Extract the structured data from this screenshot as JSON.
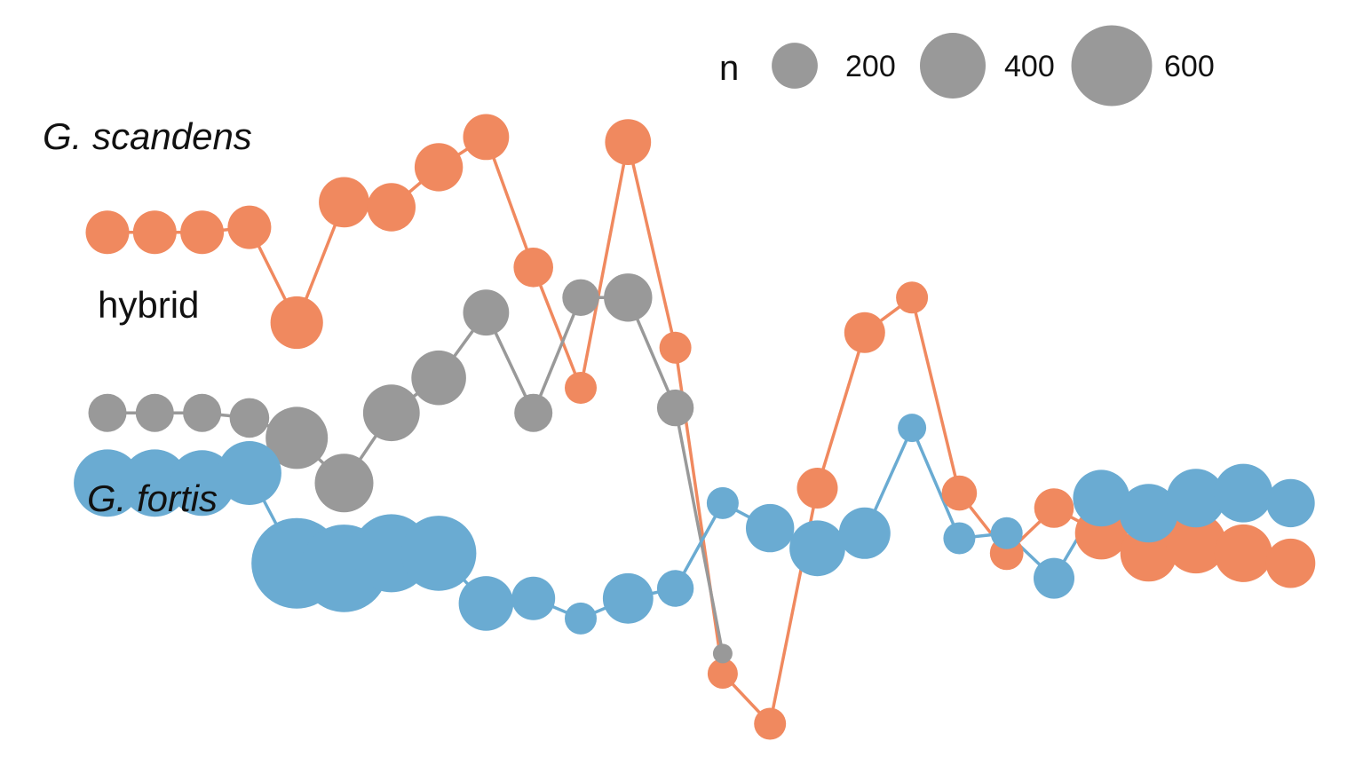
{
  "chart_data": {
    "type": "line",
    "title": "",
    "xlabel": "",
    "ylabel": "",
    "grid": false,
    "axes_visible": false,
    "x": [
      1,
      2,
      3,
      4,
      5,
      6,
      7,
      8,
      9,
      10,
      11,
      12,
      13,
      14,
      15,
      16,
      17,
      18,
      19,
      20,
      21,
      22,
      23,
      24,
      25,
      26
    ],
    "ylim": [
      0,
      1
    ],
    "size_legend": {
      "title": "n",
      "placement": "top-right",
      "color": "#999999",
      "entries": [
        {
          "label": "200",
          "n": 200
        },
        {
          "label": "400",
          "n": 400
        },
        {
          "label": "600",
          "n": 600
        }
      ]
    },
    "series": [
      {
        "name": "G. scandens",
        "color": "#F0895F",
        "label_italic": true,
        "points": [
          {
            "x": 1,
            "y": 0.88,
            "n": 180
          },
          {
            "x": 2,
            "y": 0.88,
            "n": 180
          },
          {
            "x": 3,
            "y": 0.88,
            "n": 180
          },
          {
            "x": 4,
            "y": 0.89,
            "n": 180
          },
          {
            "x": 5,
            "y": 0.7,
            "n": 260
          },
          {
            "x": 6,
            "y": 0.94,
            "n": 240
          },
          {
            "x": 7,
            "y": 0.93,
            "n": 220
          },
          {
            "x": 8,
            "y": 1.01,
            "n": 220
          },
          {
            "x": 9,
            "y": 1.07,
            "n": 200
          },
          {
            "x": 10,
            "y": 0.81,
            "n": 150
          },
          {
            "x": 11,
            "y": 0.57,
            "n": 100
          },
          {
            "x": 12,
            "y": 1.06,
            "n": 200
          },
          {
            "x": 13,
            "y": 0.65,
            "n": 100
          },
          {
            "x": 14,
            "y": 0.0,
            "n": 90
          },
          {
            "x": 15,
            "y": -0.1,
            "n": 100
          },
          {
            "x": 16,
            "y": 0.37,
            "n": 160
          },
          {
            "x": 17,
            "y": 0.68,
            "n": 160
          },
          {
            "x": 18,
            "y": 0.75,
            "n": 100
          },
          {
            "x": 19,
            "y": 0.36,
            "n": 120
          },
          {
            "x": 20,
            "y": 0.24,
            "n": 110
          },
          {
            "x": 21,
            "y": 0.33,
            "n": 150
          },
          {
            "x": 22,
            "y": 0.28,
            "n": 260
          },
          {
            "x": 23,
            "y": 0.24,
            "n": 300
          },
          {
            "x": 24,
            "y": 0.26,
            "n": 340
          },
          {
            "x": 25,
            "y": 0.24,
            "n": 310
          },
          {
            "x": 26,
            "y": 0.22,
            "n": 230
          }
        ]
      },
      {
        "name": "hybrid",
        "color": "#999999",
        "label_italic": false,
        "points": [
          {
            "x": 1,
            "y": 0.52,
            "n": 140
          },
          {
            "x": 2,
            "y": 0.52,
            "n": 140
          },
          {
            "x": 3,
            "y": 0.52,
            "n": 140
          },
          {
            "x": 4,
            "y": 0.51,
            "n": 150
          },
          {
            "x": 5,
            "y": 0.47,
            "n": 360
          },
          {
            "x": 6,
            "y": 0.38,
            "n": 320
          },
          {
            "x": 7,
            "y": 0.52,
            "n": 300
          },
          {
            "x": 8,
            "y": 0.59,
            "n": 280
          },
          {
            "x": 9,
            "y": 0.72,
            "n": 200
          },
          {
            "x": 10,
            "y": 0.52,
            "n": 140
          },
          {
            "x": 11,
            "y": 0.75,
            "n": 130
          },
          {
            "x": 12,
            "y": 0.75,
            "n": 220
          },
          {
            "x": 13,
            "y": 0.53,
            "n": 130
          },
          {
            "x": 14,
            "y": 0.04,
            "n": 40
          }
        ]
      },
      {
        "name": "G. fortis",
        "color": "#6AABD2",
        "label_italic": true,
        "points": [
          {
            "x": 1,
            "y": 0.38,
            "n": 420
          },
          {
            "x": 2,
            "y": 0.38,
            "n": 420
          },
          {
            "x": 3,
            "y": 0.38,
            "n": 400
          },
          {
            "x": 4,
            "y": 0.4,
            "n": 380
          },
          {
            "x": 5,
            "y": 0.22,
            "n": 750
          },
          {
            "x": 6,
            "y": 0.21,
            "n": 700
          },
          {
            "x": 7,
            "y": 0.24,
            "n": 560
          },
          {
            "x": 8,
            "y": 0.24,
            "n": 520
          },
          {
            "x": 9,
            "y": 0.14,
            "n": 280
          },
          {
            "x": 10,
            "y": 0.15,
            "n": 180
          },
          {
            "x": 11,
            "y": 0.11,
            "n": 100
          },
          {
            "x": 12,
            "y": 0.15,
            "n": 240
          },
          {
            "x": 13,
            "y": 0.17,
            "n": 130
          },
          {
            "x": 14,
            "y": 0.34,
            "n": 100
          },
          {
            "x": 15,
            "y": 0.29,
            "n": 220
          },
          {
            "x": 16,
            "y": 0.25,
            "n": 290
          },
          {
            "x": 17,
            "y": 0.28,
            "n": 250
          },
          {
            "x": 18,
            "y": 0.49,
            "n": 80
          },
          {
            "x": 19,
            "y": 0.27,
            "n": 100
          },
          {
            "x": 20,
            "y": 0.28,
            "n": 100
          },
          {
            "x": 21,
            "y": 0.19,
            "n": 160
          },
          {
            "x": 22,
            "y": 0.35,
            "n": 300
          },
          {
            "x": 23,
            "y": 0.32,
            "n": 320
          },
          {
            "x": 24,
            "y": 0.35,
            "n": 320
          },
          {
            "x": 25,
            "y": 0.36,
            "n": 320
          },
          {
            "x": 26,
            "y": 0.34,
            "n": 220
          }
        ]
      }
    ]
  }
}
